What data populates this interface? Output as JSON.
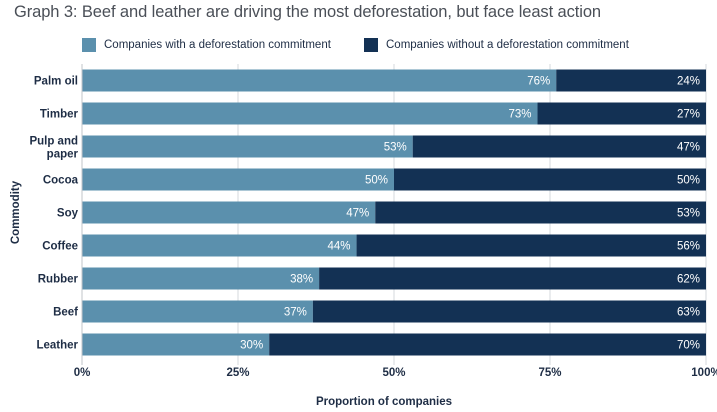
{
  "chart_data": {
    "type": "bar",
    "orientation": "horizontal",
    "stacked": true,
    "title": "Graph 3: Beef and leather are driving the most deforestation, but face least action",
    "xlabel": "Proportion of companies",
    "ylabel": "Commodity",
    "xlim": [
      0,
      100
    ],
    "xticks": [
      "0%",
      "25%",
      "50%",
      "75%",
      "100%"
    ],
    "grid": true,
    "legend_position": "top",
    "categories": [
      "Palm oil",
      "Timber",
      "Pulp and paper",
      "Cocoa",
      "Soy",
      "Coffee",
      "Rubber",
      "Beef",
      "Leather"
    ],
    "series": [
      {
        "name": "Companies with a deforestation commitment",
        "color": "#5b90ad",
        "values": [
          76,
          73,
          53,
          50,
          47,
          44,
          38,
          37,
          30
        ]
      },
      {
        "name": "Companies without a deforestation commitment",
        "color": "#133154",
        "values": [
          24,
          27,
          47,
          50,
          53,
          56,
          62,
          63,
          70
        ]
      }
    ]
  }
}
